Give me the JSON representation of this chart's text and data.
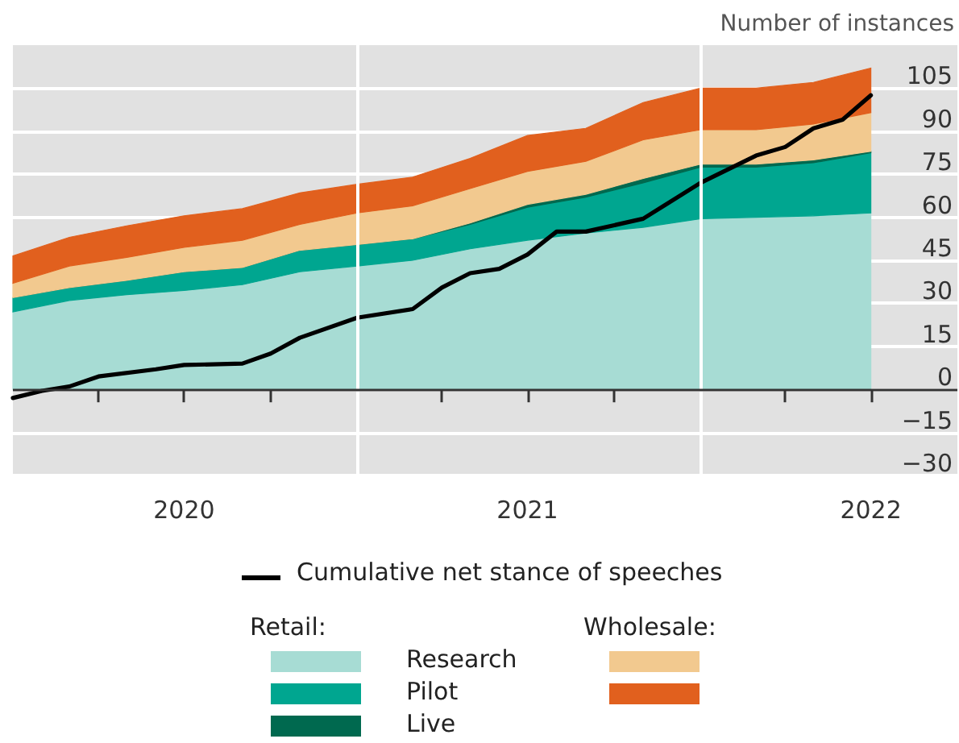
{
  "chart_data": {
    "type": "area",
    "stacked": true,
    "ylabel": "Number of instances",
    "x": [
      "2020-01",
      "2020-03",
      "2020-05",
      "2020-07",
      "2020-09",
      "2020-11",
      "2021-01",
      "2021-03",
      "2021-05",
      "2021-07",
      "2021-09",
      "2021-11",
      "2022-01",
      "2022-03",
      "2022-05",
      "2022-07"
    ],
    "series": [
      {
        "name": "Research",
        "color": "#a7dcd4",
        "values": [
          27,
          31,
          33,
          34.5,
          36.5,
          41,
          43,
          45,
          49,
          52,
          54.5,
          56.5,
          59.5,
          60,
          60.5,
          61.5
        ]
      },
      {
        "name": "Pilot",
        "color": "#00a690",
        "values": [
          5,
          4.5,
          5,
          6.5,
          6,
          7.5,
          7.5,
          7.5,
          8.5,
          11.5,
          12.5,
          15.5,
          18,
          17.5,
          18.5,
          21
        ]
      },
      {
        "name": "Live",
        "color": "#00694f",
        "values": [
          0,
          0,
          0,
          0,
          0,
          0,
          0,
          0,
          0.5,
          1,
          1,
          1.5,
          1,
          1,
          1,
          0.5
        ]
      },
      {
        "color": "#f2c98f",
        "values": [
          5,
          7.5,
          8,
          8.5,
          9.5,
          9,
          11,
          11.5,
          12,
          11.5,
          11.5,
          13.5,
          12,
          12,
          12.5,
          13.5
        ]
      },
      {
        "color": "#e1601e",
        "values": [
          9.5,
          10,
          11,
          11,
          11,
          11,
          10,
          10,
          10.5,
          12.5,
          11.5,
          13,
          14.5,
          14.5,
          14.5,
          15.5
        ]
      },
      {
        "name": "Cumulative net stance of speeches",
        "type": "line",
        "color": "#000000",
        "x": [
          "2020-01",
          "2020-02",
          "2020-03",
          "2020-04",
          "2020-06",
          "2020-07",
          "2020-09",
          "2020-10",
          "2020-11",
          "2021-01",
          "2021-03",
          "2021-04",
          "2021-05",
          "2021-06",
          "2021-07",
          "2021-08",
          "2021-09",
          "2021-11",
          "2022-01",
          "2022-03",
          "2022-04",
          "2022-05",
          "2022-06",
          "2022-07"
        ],
        "values": [
          -3,
          -0.5,
          1,
          4.5,
          7,
          8.5,
          9,
          12.5,
          18,
          25,
          28,
          35.5,
          40.5,
          42,
          47,
          55,
          55,
          59.5,
          72,
          81.5,
          84.5,
          91,
          94,
          102.5
        ]
      }
    ],
    "legend_title": "Retail:",
    "annotations": [
      "Wholesale:"
    ],
    "xlim": [
      "2020-01",
      "2022-10"
    ],
    "xticks": [
      {
        "value": "2020-04",
        "label": null
      },
      {
        "value": "2020-07",
        "label": "2020"
      },
      {
        "value": "2020-10",
        "label": null
      },
      {
        "value": "2021-01",
        "label": null
      },
      {
        "value": "2021-04",
        "label": null
      },
      {
        "value": "2021-07",
        "label": "2021"
      },
      {
        "value": "2021-10",
        "label": null
      },
      {
        "value": "2022-01",
        "label": null
      },
      {
        "value": "2022-04",
        "label": null
      },
      {
        "value": "2022-07",
        "label": "2022"
      }
    ],
    "ylim": [
      -30,
      120
    ],
    "yticks": [
      -30,
      -15,
      0,
      15,
      30,
      45,
      60,
      75,
      90,
      105
    ],
    "grid": "y",
    "legend": "bottom",
    "marker": "none",
    "line_style": "solid",
    "ref_lines": [
      {
        "axis": "x",
        "value": "2021-01",
        "label": null,
        "color": "#ffffff"
      },
      {
        "axis": "x",
        "value": "2022-01",
        "label": null,
        "color": "#ffffff"
      },
      {
        "axis": "y",
        "value": 0,
        "label": null,
        "color": "#333333"
      }
    ]
  }
}
